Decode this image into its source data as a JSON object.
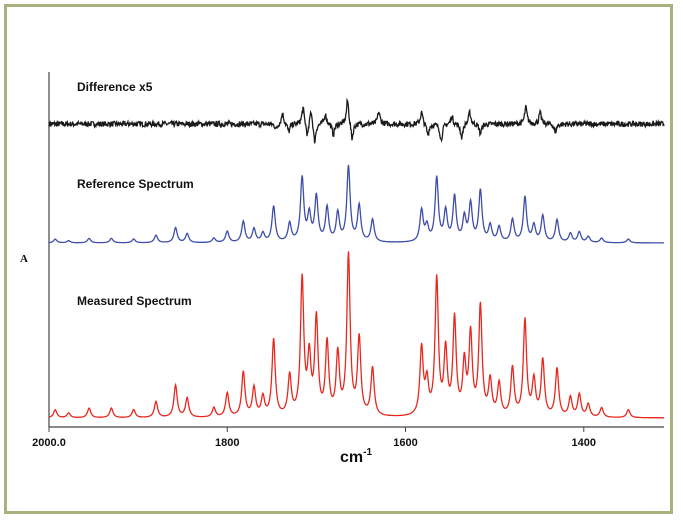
{
  "chart_data": {
    "type": "line",
    "xlabel": "cm",
    "xlabel_superscript": "-1",
    "ylabel": "A",
    "xlim": [
      2000,
      1310
    ],
    "x_reversed": true,
    "xticks": [
      {
        "value": 2000,
        "label": "2000.0"
      },
      {
        "value": 1800,
        "label": "1800"
      },
      {
        "value": 1600,
        "label": "1600"
      },
      {
        "value": 1400,
        "label": "1400"
      }
    ],
    "grid": false,
    "series": [
      {
        "name": "Difference x5",
        "color": "#1a1a1a",
        "kind": "noise",
        "noise_amplitude": 0.05,
        "peaks": [
          [
            1745,
            -0.1
          ],
          [
            1738,
            0.2
          ],
          [
            1731,
            -0.15
          ],
          [
            1715,
            0.3
          ],
          [
            1710,
            -0.25
          ],
          [
            1706,
            0.3
          ],
          [
            1702,
            -0.35
          ],
          [
            1690,
            0.18
          ],
          [
            1681,
            -0.2
          ],
          [
            1665,
            0.45
          ],
          [
            1660,
            -0.3
          ],
          [
            1630,
            0.22
          ],
          [
            1582,
            0.22
          ],
          [
            1575,
            -0.2
          ],
          [
            1560,
            -0.3
          ],
          [
            1548,
            0.15
          ],
          [
            1537,
            -0.25
          ],
          [
            1528,
            0.22
          ],
          [
            1516,
            -0.18
          ],
          [
            1465,
            0.3
          ],
          [
            1449,
            0.2
          ],
          [
            1432,
            -0.15
          ]
        ]
      },
      {
        "name": "Reference Spectrum",
        "color": "#3e4eaa",
        "kind": "peaks",
        "peaks": [
          [
            1993,
            0.05
          ],
          [
            1978,
            0.03
          ],
          [
            1955,
            0.06
          ],
          [
            1930,
            0.06
          ],
          [
            1905,
            0.05
          ],
          [
            1880,
            0.1
          ],
          [
            1858,
            0.2
          ],
          [
            1845,
            0.12
          ],
          [
            1815,
            0.06
          ],
          [
            1800,
            0.15
          ],
          [
            1782,
            0.28
          ],
          [
            1770,
            0.18
          ],
          [
            1760,
            0.12
          ],
          [
            1748,
            0.48
          ],
          [
            1730,
            0.25
          ],
          [
            1716,
            0.85
          ],
          [
            1708,
            0.35
          ],
          [
            1700,
            0.6
          ],
          [
            1688,
            0.45
          ],
          [
            1676,
            0.38
          ],
          [
            1664,
            1.0
          ],
          [
            1652,
            0.48
          ],
          [
            1637,
            0.3
          ],
          [
            1582,
            0.42
          ],
          [
            1576,
            0.2
          ],
          [
            1565,
            0.85
          ],
          [
            1555,
            0.4
          ],
          [
            1545,
            0.6
          ],
          [
            1534,
            0.32
          ],
          [
            1527,
            0.5
          ],
          [
            1516,
            0.68
          ],
          [
            1505,
            0.22
          ],
          [
            1495,
            0.2
          ],
          [
            1480,
            0.3
          ],
          [
            1466,
            0.6
          ],
          [
            1456,
            0.22
          ],
          [
            1446,
            0.35
          ],
          [
            1430,
            0.3
          ],
          [
            1415,
            0.12
          ],
          [
            1405,
            0.14
          ],
          [
            1395,
            0.08
          ],
          [
            1380,
            0.06
          ],
          [
            1350,
            0.05
          ]
        ]
      },
      {
        "name": "Measured Spectrum",
        "color": "#e8281e",
        "kind": "peaks",
        "peaks": [
          [
            1993,
            0.05
          ],
          [
            1978,
            0.03
          ],
          [
            1955,
            0.06
          ],
          [
            1930,
            0.06
          ],
          [
            1905,
            0.05
          ],
          [
            1880,
            0.1
          ],
          [
            1858,
            0.2
          ],
          [
            1845,
            0.12
          ],
          [
            1815,
            0.06
          ],
          [
            1800,
            0.15
          ],
          [
            1782,
            0.28
          ],
          [
            1770,
            0.18
          ],
          [
            1760,
            0.12
          ],
          [
            1748,
            0.48
          ],
          [
            1730,
            0.25
          ],
          [
            1716,
            0.85
          ],
          [
            1708,
            0.35
          ],
          [
            1700,
            0.6
          ],
          [
            1688,
            0.45
          ],
          [
            1676,
            0.38
          ],
          [
            1664,
            1.0
          ],
          [
            1652,
            0.48
          ],
          [
            1637,
            0.3
          ],
          [
            1582,
            0.42
          ],
          [
            1576,
            0.2
          ],
          [
            1565,
            0.85
          ],
          [
            1555,
            0.4
          ],
          [
            1545,
            0.6
          ],
          [
            1534,
            0.32
          ],
          [
            1527,
            0.5
          ],
          [
            1516,
            0.68
          ],
          [
            1505,
            0.22
          ],
          [
            1495,
            0.2
          ],
          [
            1480,
            0.3
          ],
          [
            1466,
            0.6
          ],
          [
            1456,
            0.22
          ],
          [
            1446,
            0.35
          ],
          [
            1430,
            0.3
          ],
          [
            1415,
            0.12
          ],
          [
            1405,
            0.14
          ],
          [
            1395,
            0.08
          ],
          [
            1380,
            0.06
          ],
          [
            1350,
            0.05
          ]
        ]
      }
    ]
  }
}
